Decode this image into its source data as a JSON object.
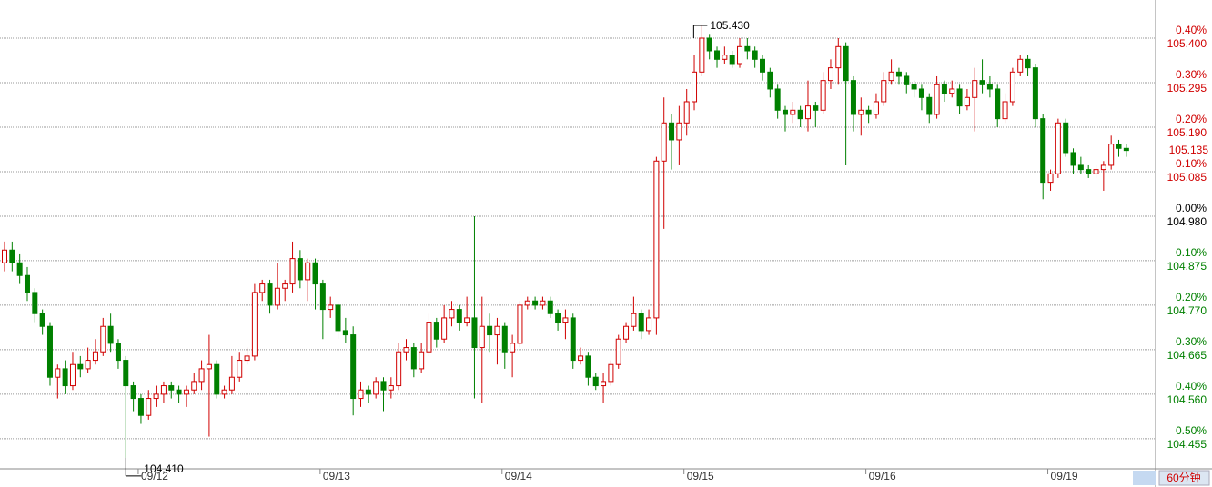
{
  "chart_data": {
    "type": "candlestick",
    "categories": [
      null,
      null,
      null,
      null,
      null,
      null,
      null,
      null,
      null,
      null,
      null,
      null,
      null,
      null,
      null,
      null,
      null,
      null,
      "09/12",
      null,
      null,
      null,
      null,
      null,
      null,
      null,
      null,
      null,
      null,
      null,
      null,
      null,
      null,
      null,
      null,
      null,
      null,
      null,
      null,
      null,
      null,
      null,
      "09/13",
      null,
      null,
      null,
      null,
      null,
      null,
      null,
      null,
      null,
      null,
      null,
      null,
      null,
      null,
      null,
      null,
      null,
      null,
      null,
      null,
      null,
      null,
      null,
      "09/14",
      null,
      null,
      null,
      null,
      null,
      null,
      null,
      null,
      null,
      null,
      null,
      null,
      null,
      null,
      null,
      null,
      null,
      null,
      null,
      null,
      null,
      null,
      null,
      "09/15",
      null,
      null,
      null,
      null,
      null,
      null,
      null,
      null,
      null,
      null,
      null,
      null,
      null,
      null,
      null,
      null,
      null,
      null,
      null,
      null,
      null,
      null,
      null,
      "09/16",
      null,
      null,
      null,
      null,
      null,
      null,
      null,
      null,
      null,
      null,
      null,
      null,
      null,
      null,
      null,
      null,
      null,
      null,
      null,
      null,
      null,
      null,
      null,
      "09/19",
      null,
      null,
      null,
      null,
      null,
      null,
      null,
      null,
      null,
      null
    ],
    "open": [
      104.87,
      104.9,
      104.87,
      104.84,
      104.8,
      104.75,
      104.72,
      104.6,
      104.62,
      104.58,
      104.63,
      104.62,
      104.64,
      104.66,
      104.72,
      104.68,
      104.64,
      104.58,
      104.55,
      104.51,
      104.55,
      104.56,
      104.58,
      104.57,
      104.56,
      104.57,
      104.59,
      104.62,
      104.63,
      104.56,
      104.57,
      104.6,
      104.64,
      104.65,
      104.8,
      104.82,
      104.77,
      104.81,
      104.82,
      104.88,
      104.83,
      104.87,
      104.82,
      104.76,
      104.77,
      104.71,
      104.7,
      104.55,
      104.57,
      104.56,
      104.59,
      104.57,
      104.58,
      104.66,
      104.67,
      104.62,
      104.66,
      104.73,
      104.69,
      104.74,
      104.76,
      104.73,
      104.74,
      104.67,
      104.72,
      104.7,
      104.72,
      104.66,
      104.68,
      104.77,
      104.78,
      104.77,
      104.78,
      104.75,
      104.73,
      104.74,
      104.64,
      104.65,
      104.6,
      104.58,
      104.59,
      104.63,
      104.69,
      104.72,
      104.75,
      104.71,
      104.74,
      105.11,
      105.2,
      105.16,
      105.2,
      105.25,
      105.32,
      105.4,
      105.37,
      105.35,
      105.36,
      105.34,
      105.38,
      105.37,
      105.35,
      105.32,
      105.28,
      105.23,
      105.22,
      105.23,
      105.21,
      105.24,
      105.23,
      105.3,
      105.33,
      105.38,
      105.3,
      105.22,
      105.23,
      105.22,
      105.25,
      105.3,
      105.32,
      105.31,
      105.29,
      105.28,
      105.26,
      105.22,
      105.29,
      105.27,
      105.28,
      105.24,
      105.26,
      105.3,
      105.29,
      105.28,
      105.21,
      105.25,
      105.32,
      105.35,
      105.33,
      105.21,
      105.06,
      105.08,
      105.2,
      105.13,
      105.1,
      105.09,
      105.08,
      105.09,
      105.1,
      105.15,
      105.14
    ],
    "high": [
      104.92,
      104.92,
      104.89,
      104.86,
      104.81,
      104.76,
      104.73,
      104.63,
      104.64,
      104.66,
      104.65,
      104.67,
      104.69,
      104.74,
      104.75,
      104.69,
      104.65,
      104.59,
      104.56,
      104.57,
      104.58,
      104.59,
      104.59,
      104.58,
      104.58,
      104.61,
      104.64,
      104.7,
      104.64,
      104.58,
      104.65,
      104.66,
      104.67,
      104.82,
      104.83,
      104.83,
      104.87,
      104.83,
      104.92,
      104.9,
      104.88,
      104.88,
      104.83,
      104.79,
      104.78,
      104.74,
      104.72,
      104.59,
      104.58,
      104.6,
      104.6,
      104.6,
      104.68,
      104.69,
      104.68,
      104.68,
      104.75,
      104.74,
      104.77,
      104.78,
      104.77,
      104.79,
      104.98,
      104.79,
      104.75,
      104.74,
      104.73,
      104.7,
      104.78,
      104.79,
      104.79,
      104.79,
      104.79,
      104.76,
      104.76,
      104.75,
      104.67,
      104.66,
      104.61,
      104.61,
      104.64,
      104.7,
      104.73,
      104.79,
      104.76,
      104.76,
      105.12,
      105.26,
      105.22,
      105.24,
      105.28,
      105.36,
      105.43,
      105.41,
      105.38,
      105.38,
      105.37,
      105.4,
      105.4,
      105.38,
      105.36,
      105.33,
      105.29,
      105.24,
      105.25,
      105.24,
      105.3,
      105.25,
      105.32,
      105.35,
      105.4,
      105.39,
      105.31,
      105.26,
      105.24,
      105.27,
      105.32,
      105.35,
      105.33,
      105.32,
      105.3,
      105.29,
      105.27,
      105.31,
      105.3,
      105.3,
      105.29,
      105.28,
      105.33,
      105.35,
      105.31,
      105.29,
      105.27,
      105.33,
      105.36,
      105.36,
      105.34,
      105.22,
      105.09,
      105.21,
      105.21,
      105.14,
      105.12,
      105.1,
      105.1,
      105.11,
      105.17,
      105.16,
      105.15
    ],
    "low": [
      104.85,
      104.85,
      104.82,
      104.78,
      104.73,
      104.7,
      104.58,
      104.55,
      104.56,
      104.57,
      104.6,
      104.61,
      104.63,
      104.65,
      104.66,
      104.62,
      104.41,
      104.52,
      104.49,
      104.5,
      104.53,
      104.54,
      104.55,
      104.54,
      104.53,
      104.56,
      104.57,
      104.46,
      104.55,
      104.55,
      104.56,
      104.59,
      104.63,
      104.64,
      104.78,
      104.75,
      104.76,
      104.78,
      104.8,
      104.81,
      104.78,
      104.76,
      104.69,
      104.74,
      104.69,
      104.68,
      104.51,
      104.53,
      104.54,
      104.55,
      104.52,
      104.55,
      104.57,
      104.64,
      104.6,
      104.61,
      104.65,
      104.67,
      104.68,
      104.72,
      104.71,
      104.72,
      104.55,
      104.54,
      104.66,
      104.63,
      104.62,
      104.6,
      104.67,
      104.76,
      104.76,
      104.76,
      104.74,
      104.71,
      104.69,
      104.62,
      104.63,
      104.58,
      104.57,
      104.54,
      104.58,
      104.62,
      104.68,
      104.71,
      104.69,
      104.7,
      104.7,
      104.95,
      105.09,
      105.1,
      105.17,
      105.23,
      105.31,
      105.35,
      105.33,
      105.34,
      105.33,
      105.33,
      105.35,
      105.33,
      105.3,
      105.26,
      105.21,
      105.18,
      105.2,
      105.19,
      105.18,
      105.19,
      105.22,
      105.28,
      105.29,
      105.1,
      105.18,
      105.17,
      105.2,
      105.21,
      105.24,
      105.29,
      105.29,
      105.27,
      105.26,
      105.23,
      105.2,
      105.21,
      105.25,
      105.26,
      105.22,
      105.23,
      105.18,
      105.27,
      105.26,
      105.19,
      105.2,
      105.24,
      105.31,
      105.31,
      105.19,
      105.02,
      105.04,
      105.07,
      105.12,
      105.08,
      105.08,
      105.07,
      105.07,
      105.04,
      105.09,
      105.12,
      105.12
    ],
    "close": [
      104.9,
      104.87,
      104.84,
      104.8,
      104.75,
      104.72,
      104.6,
      104.62,
      104.58,
      104.63,
      104.62,
      104.64,
      104.66,
      104.72,
      104.68,
      104.64,
      104.58,
      104.55,
      104.51,
      104.55,
      104.56,
      104.58,
      104.57,
      104.56,
      104.57,
      104.59,
      104.62,
      104.63,
      104.56,
      104.57,
      104.6,
      104.64,
      104.65,
      104.8,
      104.82,
      104.77,
      104.81,
      104.82,
      104.88,
      104.83,
      104.87,
      104.82,
      104.76,
      104.77,
      104.71,
      104.7,
      104.55,
      104.57,
      104.56,
      104.59,
      104.57,
      104.58,
      104.66,
      104.67,
      104.62,
      104.66,
      104.73,
      104.69,
      104.74,
      104.76,
      104.73,
      104.74,
      104.67,
      104.72,
      104.7,
      104.72,
      104.66,
      104.68,
      104.77,
      104.78,
      104.77,
      104.78,
      104.75,
      104.73,
      104.74,
      104.64,
      104.65,
      104.6,
      104.58,
      104.59,
      104.63,
      104.69,
      104.72,
      104.75,
      104.71,
      104.74,
      105.11,
      105.2,
      105.16,
      105.2,
      105.25,
      105.32,
      105.4,
      105.37,
      105.35,
      105.36,
      105.34,
      105.38,
      105.37,
      105.35,
      105.32,
      105.28,
      105.23,
      105.22,
      105.23,
      105.21,
      105.24,
      105.23,
      105.3,
      105.33,
      105.38,
      105.3,
      105.22,
      105.23,
      105.22,
      105.25,
      105.3,
      105.32,
      105.31,
      105.29,
      105.28,
      105.26,
      105.22,
      105.29,
      105.27,
      105.28,
      105.24,
      105.26,
      105.3,
      105.29,
      105.28,
      105.21,
      105.25,
      105.32,
      105.35,
      105.33,
      105.21,
      105.06,
      105.08,
      105.2,
      105.13,
      105.1,
      105.09,
      105.08,
      105.09,
      105.1,
      105.15,
      105.14,
      105.135
    ],
    "up_color": "#d00000",
    "down_color": "#008000",
    "ylim": [
      104.384,
      105.49
    ],
    "yticks": [
      {
        "value": 105.4,
        "label": "105.400"
      },
      105.295,
      {
        "value": 105.19,
        "label": "105.190"
      },
      105.085,
      {
        "value": 104.98,
        "label": "104.980"
      },
      104.875,
      {
        "value": 104.77,
        "label": "104.770"
      },
      104.665,
      {
        "value": 104.56,
        "label": "104.560"
      },
      104.455
    ],
    "pct_labels": [
      "0.40%",
      "0.30%",
      "0.20%",
      "0.10%",
      "0.00%",
      "0.10%",
      "0.20%",
      "0.30%",
      "0.40%",
      "0.50%"
    ],
    "base_price": 104.98,
    "last_price": {
      "value": 105.135,
      "label": "105.135"
    },
    "high_mark": {
      "value": 105.43,
      "label": "105.430",
      "index": 92
    },
    "low_mark": {
      "value": 104.41,
      "label": "104.410",
      "index": 16
    },
    "period_button": "60分钟",
    "grid": true
  }
}
